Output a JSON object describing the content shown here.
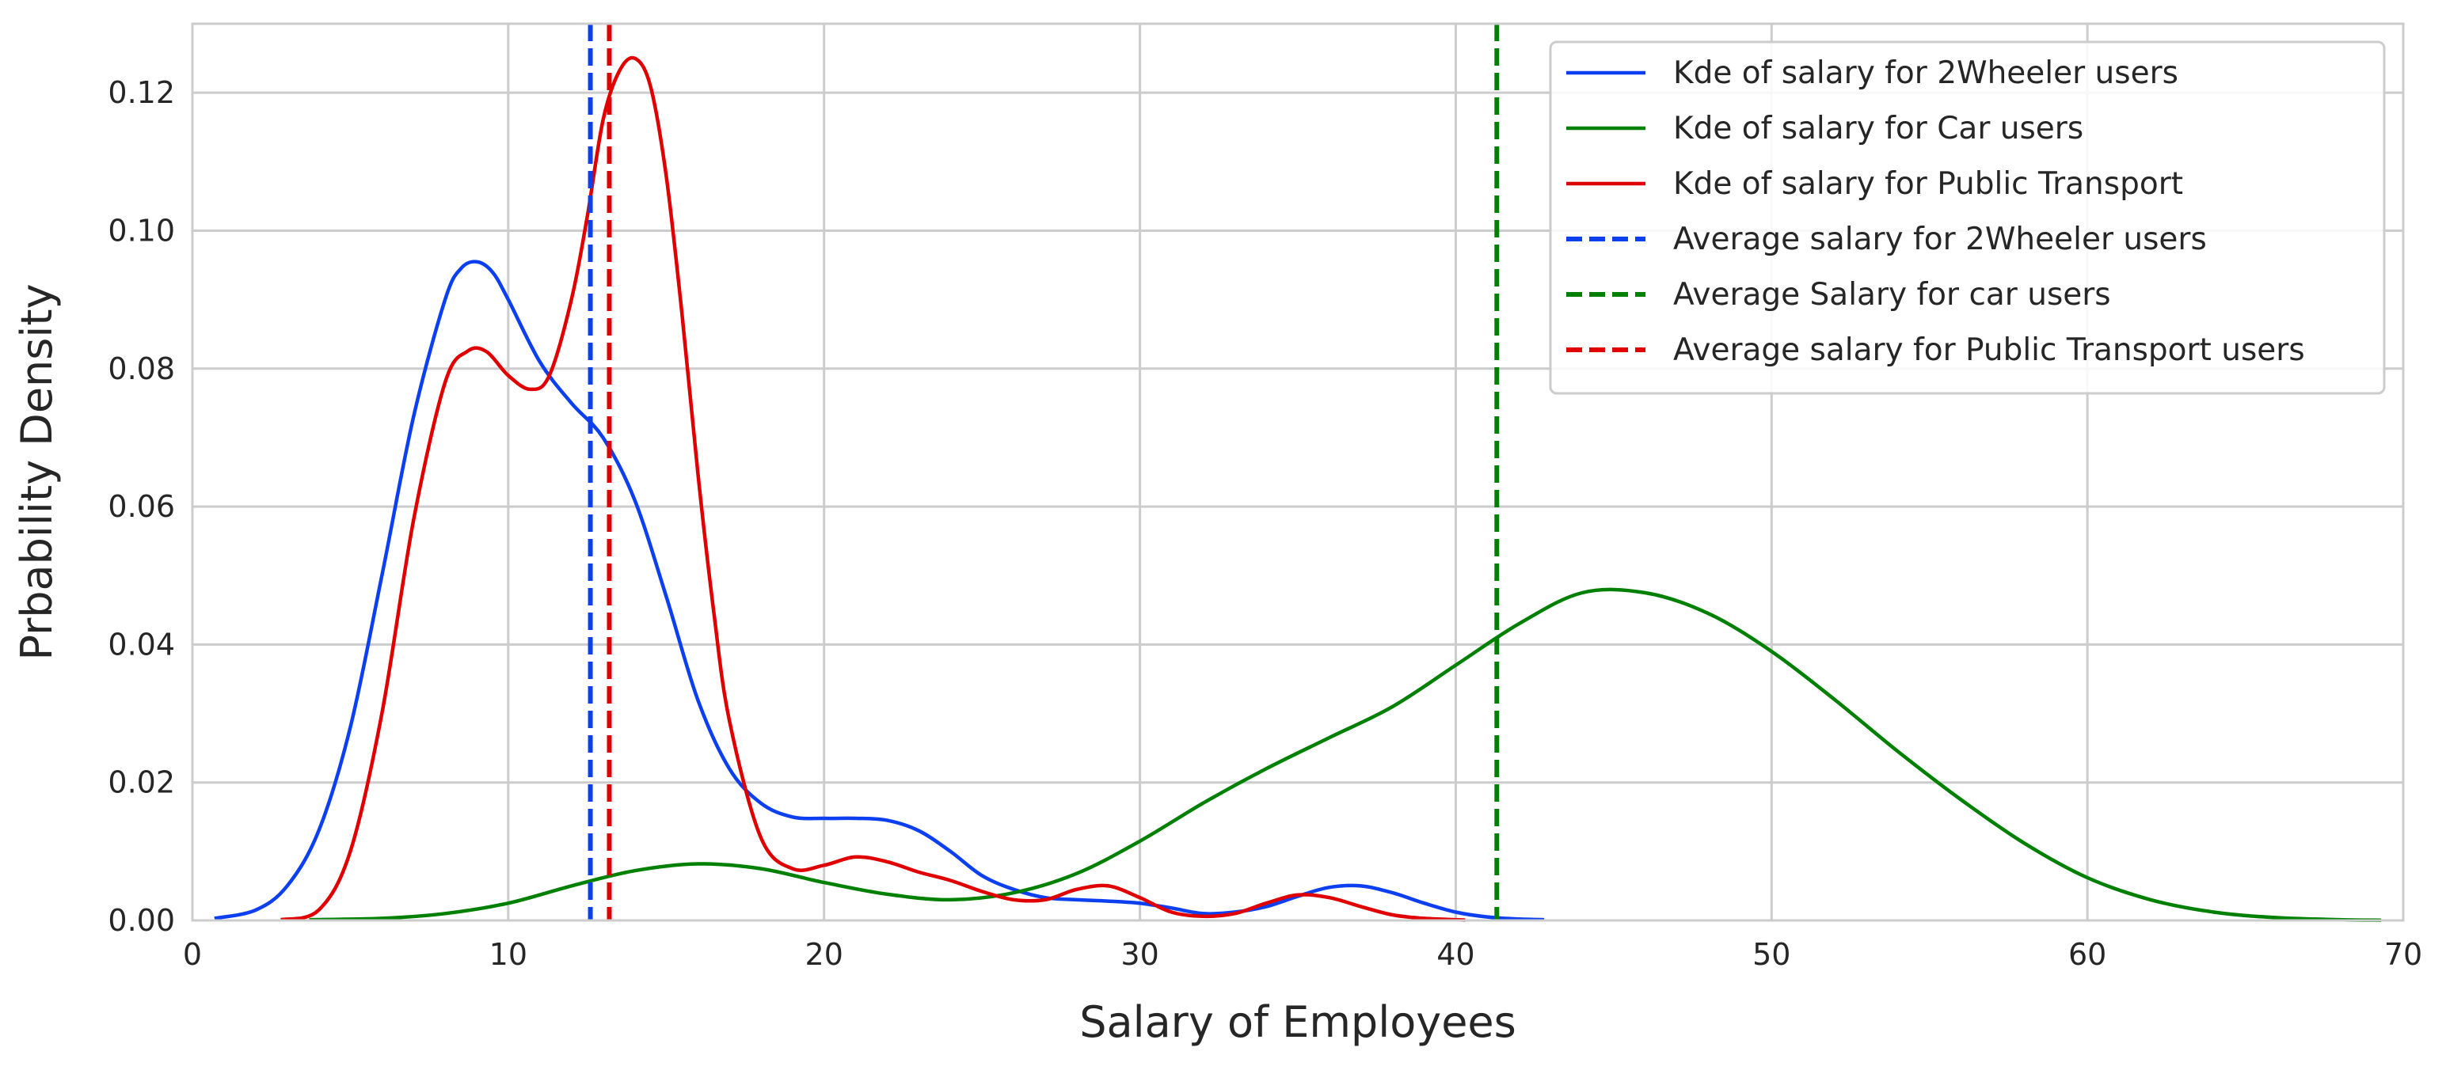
{
  "chart_data": {
    "type": "line",
    "title": "",
    "xlabel": "Salary of Employees",
    "ylabel": "Prbability Density",
    "xlim": [
      0,
      70
    ],
    "ylim": [
      0,
      0.13
    ],
    "xticks": [
      0,
      10,
      20,
      30,
      40,
      50,
      60,
      70
    ],
    "xtick_labels": [
      "0",
      "10",
      "20",
      "30",
      "40",
      "50",
      "60",
      "70"
    ],
    "yticks": [
      0,
      0.02,
      0.04,
      0.06,
      0.08,
      0.1,
      0.12
    ],
    "ytick_labels": [
      "0.00",
      "0.02",
      "0.04",
      "0.06",
      "0.08",
      "0.10",
      "0.12"
    ],
    "grid": true,
    "legend_position": "top-right",
    "series": [
      {
        "name": "Kde of salary for 2Wheeler users",
        "color": "#0b3ff0",
        "style": "solid",
        "x": [
          0.7,
          2,
          3,
          4,
          5,
          6,
          7,
          8,
          8.5,
          9,
          9.5,
          10,
          11,
          12,
          13,
          14,
          15,
          16,
          17,
          18,
          19,
          20,
          21,
          22,
          23,
          24,
          25,
          26,
          27,
          28,
          29,
          30,
          31,
          32,
          33,
          34,
          35,
          36,
          37,
          38,
          39,
          40,
          41,
          42,
          42.8
        ],
        "y": [
          0.0003,
          0.0015,
          0.005,
          0.013,
          0.028,
          0.05,
          0.073,
          0.09,
          0.0945,
          0.0955,
          0.094,
          0.09,
          0.081,
          0.075,
          0.07,
          0.061,
          0.047,
          0.032,
          0.022,
          0.017,
          0.015,
          0.0148,
          0.0148,
          0.0145,
          0.013,
          0.01,
          0.0065,
          0.0045,
          0.0033,
          0.003,
          0.0028,
          0.0025,
          0.0018,
          0.001,
          0.0012,
          0.002,
          0.0035,
          0.0048,
          0.005,
          0.004,
          0.0025,
          0.0012,
          0.0005,
          0.0002,
          0.0001
        ]
      },
      {
        "name": "Kde of salary for Car users",
        "color": "#008000",
        "style": "solid",
        "x": [
          3.7,
          6,
          8,
          10,
          12,
          14,
          16,
          18,
          20,
          22,
          24,
          26,
          28,
          30,
          32,
          34,
          36,
          38,
          40,
          42,
          44,
          46,
          48,
          50,
          52,
          54,
          56,
          58,
          60,
          62,
          64,
          66,
          68,
          69.3
        ],
        "y": [
          0.0001,
          0.0003,
          0.001,
          0.0025,
          0.005,
          0.0072,
          0.0082,
          0.0075,
          0.0055,
          0.0038,
          0.003,
          0.004,
          0.0068,
          0.0115,
          0.017,
          0.022,
          0.0265,
          0.031,
          0.037,
          0.043,
          0.0475,
          0.0475,
          0.0445,
          0.039,
          0.032,
          0.0245,
          0.0175,
          0.0112,
          0.0062,
          0.003,
          0.0012,
          0.0004,
          0.0001,
          3e-05
        ]
      },
      {
        "name": "Kde of salary for Public Transport",
        "color": "#e00000",
        "style": "solid",
        "x": [
          2.8,
          4,
          5,
          6,
          7,
          8,
          8.7,
          9.3,
          10,
          10.7,
          11.3,
          12,
          12.5,
          13,
          13.5,
          14,
          14.5,
          15,
          15.5,
          16,
          16.5,
          17,
          18,
          19,
          20,
          21,
          22,
          23,
          24,
          25,
          26,
          27,
          28,
          29,
          30,
          31,
          32,
          33,
          34,
          35,
          36,
          37,
          38,
          39,
          40.3
        ],
        "y": [
          0.0001,
          0.0015,
          0.01,
          0.03,
          0.058,
          0.078,
          0.0825,
          0.0825,
          0.079,
          0.077,
          0.079,
          0.09,
          0.102,
          0.116,
          0.123,
          0.125,
          0.121,
          0.108,
          0.088,
          0.065,
          0.045,
          0.029,
          0.012,
          0.0075,
          0.008,
          0.0092,
          0.0085,
          0.007,
          0.0058,
          0.0042,
          0.003,
          0.003,
          0.0045,
          0.005,
          0.0033,
          0.0012,
          0.0006,
          0.001,
          0.0025,
          0.0037,
          0.0033,
          0.002,
          0.0008,
          0.0003,
          5e-05
        ]
      }
    ],
    "reference_lines": [
      {
        "name": "Average salary for 2Wheeler users",
        "color": "#0b3ff0",
        "style": "dashed",
        "x": 12.6
      },
      {
        "name": "Average Salary for car users",
        "color": "#008000",
        "style": "dashed",
        "x": 41.3
      },
      {
        "name": "Average salary for Public Transport users",
        "color": "#e00000",
        "style": "dashed",
        "x": 13.2
      }
    ]
  }
}
